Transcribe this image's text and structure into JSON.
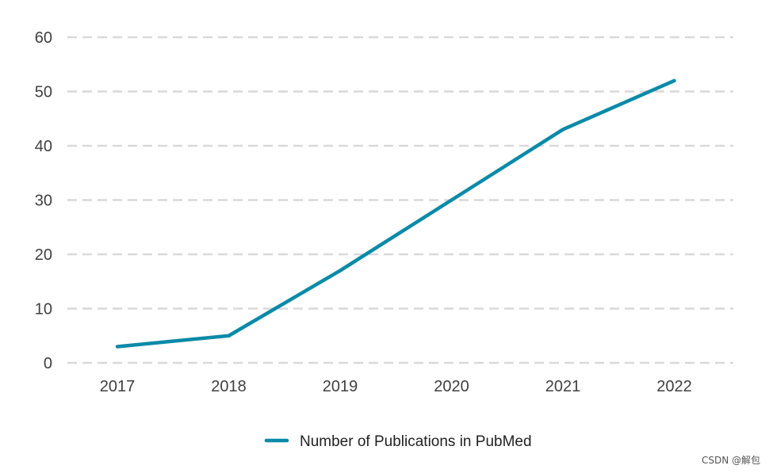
{
  "chart_data": {
    "type": "line",
    "categories": [
      "2017",
      "2018",
      "2019",
      "2020",
      "2021",
      "2022"
    ],
    "series": [
      {
        "name": "Number of Publications in PubMed",
        "values": [
          3,
          5,
          17,
          30,
          43,
          52
        ],
        "color": "#0b8aa8"
      }
    ],
    "ylim": [
      0,
      60
    ],
    "yticks": [
      0,
      10,
      20,
      30,
      40,
      50,
      60
    ],
    "grid": "horizontal dashed",
    "gridColor": "#d9d9d9",
    "legend": "bottom-center"
  },
  "watermark": "CSDN @解包"
}
